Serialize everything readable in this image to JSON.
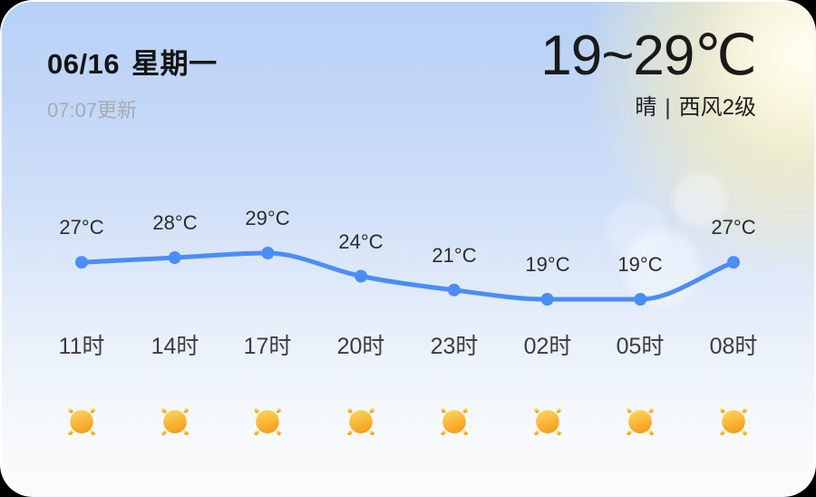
{
  "card": {
    "date": "06/16",
    "weekday": "星期一",
    "updated": "07:07更新",
    "temp_range": "19~29℃",
    "condition": "晴",
    "separator": "|",
    "wind": "西风2级"
  },
  "chart_data": {
    "type": "line",
    "title": "",
    "series_name": "hourly-temperature",
    "x": [
      "11时",
      "14时",
      "17时",
      "20时",
      "23时",
      "02时",
      "05时",
      "08时"
    ],
    "values": [
      27,
      28,
      29,
      24,
      21,
      19,
      19,
      27
    ],
    "point_labels": [
      "27°C",
      "28°C",
      "29°C",
      "24°C",
      "21°C",
      "19°C",
      "19°C",
      "27°C"
    ],
    "icons": [
      "sunny",
      "sunny",
      "sunny",
      "sunny",
      "sunny",
      "sunny",
      "sunny",
      "sunny"
    ],
    "unit": "°C",
    "ylim": [
      19,
      29
    ],
    "grid": false,
    "legend": "none",
    "line_color": "#4a8df5",
    "point_color": "#4a8df5"
  },
  "colors": {
    "background_top": "#b7d1f7",
    "background_bottom": "#fafbfc",
    "accent_line": "#4a8df5",
    "sun_yellow_top": "#ffd963",
    "sun_orange_bottom": "#f5a01f",
    "title_text": "#141414",
    "muted_text": "#a7abb2"
  }
}
